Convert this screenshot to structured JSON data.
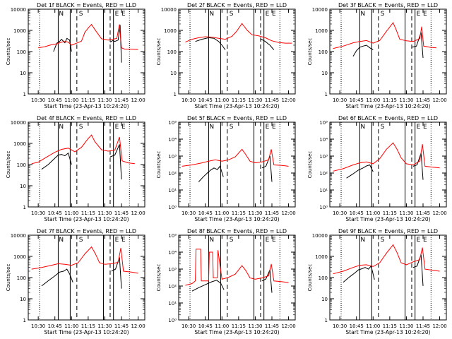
{
  "chart_data": [
    {
      "type": "line",
      "title": "Det 1f BLACK = Events, RED = LLD",
      "xlabel": "Start Time (23-Apr-13 10:24:20)",
      "ylabel": "Counts/sec",
      "scale": "log",
      "ylim": [
        1,
        10000
      ],
      "yticks": [
        "1",
        "10",
        "100",
        "1000",
        "10000"
      ],
      "xticks": [
        "10:30",
        "10:45",
        "11:00",
        "11:15",
        "11:30",
        "11:45",
        "12:00"
      ],
      "series": [
        {
          "color": "#000000",
          "x": [
            10.73,
            10.78,
            10.82,
            10.85,
            10.9,
            10.93,
            10.97,
            11.0
          ],
          "y": [
            100,
            250,
            300,
            380,
            260,
            420,
            350,
            100
          ]
        },
        {
          "color": "#000000",
          "x": [
            11.58,
            11.62,
            11.65,
            11.7,
            11.73,
            11.75
          ],
          "y": [
            280,
            330,
            300,
            350,
            1800,
            30
          ]
        },
        {
          "color": "#ff0000",
          "x": [
            10.5,
            10.6,
            10.7,
            10.78,
            10.85,
            10.9,
            10.95,
            11.0,
            11.05,
            11.15,
            11.2,
            11.25,
            11.3,
            11.35,
            11.45,
            11.55,
            11.62,
            11.68,
            11.72,
            11.75,
            11.8,
            11.9,
            12.0
          ],
          "y": [
            150,
            170,
            210,
            230,
            280,
            300,
            280,
            200,
            230,
            310,
            800,
            1300,
            1900,
            1100,
            400,
            350,
            380,
            420,
            1900,
            150,
            130,
            130,
            125
          ]
        }
      ]
    },
    {
      "type": "line",
      "title": "Det 2f BLACK = Events, RED = LLD",
      "xlabel": "Start Time (23-Apr-13 10:24:20)",
      "ylabel": "Counts/sec",
      "scale": "log",
      "ylim": [
        1,
        10000
      ],
      "yticks": [
        "1",
        "10",
        "100",
        "1000",
        "10000"
      ],
      "xticks": [
        "10:30",
        "10:45",
        "11:00",
        "11:15",
        "11:30",
        "11:45",
        "12:00"
      ],
      "series": [
        {
          "color": "#000000",
          "x": [
            10.6,
            10.7,
            10.8,
            10.88,
            10.95,
            11.0,
            11.05
          ],
          "y": [
            300,
            380,
            450,
            420,
            300,
            200,
            120
          ]
        },
        {
          "color": "#000000",
          "x": [
            11.58,
            11.65,
            11.72,
            11.78
          ],
          "y": [
            400,
            300,
            200,
            120
          ]
        },
        {
          "color": "#ff0000",
          "x": [
            10.45,
            10.55,
            10.65,
            10.75,
            10.85,
            10.95,
            11.05,
            11.15,
            11.22,
            11.3,
            11.38,
            11.45,
            11.55,
            11.65,
            11.75,
            11.85,
            11.95,
            12.05
          ],
          "y": [
            280,
            380,
            450,
            500,
            480,
            420,
            380,
            520,
            900,
            2100,
            1000,
            620,
            550,
            450,
            320,
            270,
            250,
            250
          ]
        }
      ]
    },
    {
      "type": "line",
      "title": "Det 3f BLACK = Events, RED = LLD",
      "xlabel": "Start Time (23-Apr-13 10:24:20)",
      "ylabel": "Counts/sec",
      "scale": "log",
      "ylim": [
        1,
        10000
      ],
      "yticks": [
        "1",
        "10",
        "100",
        "1000",
        "10000"
      ],
      "xticks": [
        "10:30",
        "10:45",
        "11:00",
        "11:15",
        "11:30",
        "11:45",
        "12:00"
      ],
      "series": [
        {
          "color": "#000000",
          "x": [
            10.7,
            10.75,
            10.8,
            10.85,
            10.9,
            10.95,
            11.0
          ],
          "y": [
            60,
            110,
            160,
            180,
            200,
            150,
            120
          ]
        },
        {
          "color": "#000000",
          "x": [
            11.58,
            11.65,
            11.72,
            11.75
          ],
          "y": [
            160,
            180,
            800,
            50
          ]
        },
        {
          "color": "#ff0000",
          "x": [
            10.4,
            10.55,
            10.7,
            10.8,
            10.9,
            11.0,
            11.1,
            11.2,
            11.3,
            11.35,
            11.4,
            11.5,
            11.6,
            11.7,
            11.73,
            11.76,
            11.85,
            11.95
          ],
          "y": [
            140,
            180,
            260,
            300,
            330,
            250,
            330,
            900,
            2300,
            1000,
            380,
            320,
            300,
            400,
            1500,
            180,
            160,
            150
          ]
        }
      ]
    },
    {
      "type": "line",
      "title": "Det 4f BLACK = Events, RED = LLD",
      "xlabel": "Start Time (23-Apr-13 10:24:20)",
      "ylabel": "Counts/sec",
      "scale": "log",
      "ylim": [
        1,
        10000
      ],
      "yticks": [
        "1",
        "10",
        "100",
        "1000",
        "10000"
      ],
      "xticks": [
        "10:30",
        "10:45",
        "11:00",
        "11:15",
        "11:30",
        "11:45",
        "12:00"
      ],
      "series": [
        {
          "color": "#000000",
          "x": [
            10.55,
            10.65,
            10.75,
            10.8,
            10.85,
            10.9,
            10.95,
            11.0
          ],
          "y": [
            60,
            100,
            200,
            280,
            300,
            260,
            350,
            100
          ]
        },
        {
          "color": "#000000",
          "x": [
            11.58,
            11.65,
            11.72,
            11.75
          ],
          "y": [
            230,
            280,
            900,
            20
          ]
        },
        {
          "color": "#ff0000",
          "x": [
            10.4,
            10.5,
            10.65,
            10.75,
            10.85,
            10.95,
            11.05,
            11.15,
            11.25,
            11.3,
            11.35,
            11.45,
            11.55,
            11.65,
            11.72,
            11.76,
            11.85,
            11.95
          ],
          "y": [
            110,
            130,
            250,
            380,
            520,
            600,
            400,
            650,
            1700,
            2500,
            1200,
            500,
            430,
            480,
            2000,
            150,
            120,
            110
          ]
        }
      ]
    },
    {
      "type": "line",
      "title": "Det 5f BLACK = Events, RED = LLD",
      "xlabel": "Start Time (23-Apr-13 10:24:20)",
      "ylabel": "Counts/sec",
      "scale": "log",
      "ylim": [
        1,
        100000
      ],
      "yticks": [
        "10⁰",
        "10¹",
        "10²",
        "10³",
        "10⁴",
        "10⁵"
      ],
      "xticks": [
        "10:30",
        "10:45",
        "11:00",
        "11:15",
        "11:30",
        "11:45",
        "12:00"
      ],
      "series": [
        {
          "color": "#000000",
          "x": [
            10.65,
            10.72,
            10.78,
            10.83,
            10.88,
            10.93,
            10.97,
            11.02
          ],
          "y": [
            30,
            60,
            100,
            150,
            200,
            160,
            250,
            60
          ]
        },
        {
          "color": "#000000",
          "x": [
            11.6,
            11.66,
            11.72,
            11.75
          ],
          "y": [
            200,
            250,
            1000,
            30
          ]
        },
        {
          "color": "#ff0000",
          "x": [
            10.4,
            10.55,
            10.7,
            10.8,
            10.9,
            11.0,
            11.1,
            11.2,
            11.3,
            11.36,
            11.42,
            11.5,
            11.6,
            11.7,
            11.74,
            11.78,
            11.9,
            12.0
          ],
          "y": [
            250,
            300,
            400,
            500,
            600,
            500,
            600,
            900,
            2500,
            1200,
            500,
            400,
            450,
            600,
            2500,
            300,
            280,
            250
          ]
        }
      ]
    },
    {
      "type": "line",
      "title": "Det 6f BLACK = Events, RED = LLD",
      "xlabel": "Start Time (23-Apr-13 10:24:20)",
      "ylabel": "Counts/sec",
      "scale": "log",
      "ylim": [
        1,
        100000
      ],
      "yticks": [
        "10⁰",
        "10¹",
        "10²",
        "10³",
        "10⁴",
        "10⁵"
      ],
      "xticks": [
        "10:30",
        "10:45",
        "11:00",
        "11:15",
        "11:30",
        "11:45",
        "12:00"
      ],
      "series": [
        {
          "color": "#000000",
          "x": [
            10.6,
            10.7,
            10.78,
            10.85,
            10.9,
            10.95,
            11.0
          ],
          "y": [
            50,
            90,
            150,
            200,
            260,
            300,
            120
          ]
        },
        {
          "color": "#000000",
          "x": [
            11.6,
            11.66,
            11.72,
            11.75
          ],
          "y": [
            250,
            300,
            1500,
            40
          ]
        },
        {
          "color": "#ff0000",
          "x": [
            10.4,
            10.55,
            10.7,
            10.8,
            10.9,
            11.0,
            11.1,
            11.2,
            11.3,
            11.36,
            11.42,
            11.5,
            11.6,
            11.7,
            11.74,
            11.78,
            11.9,
            12.0
          ],
          "y": [
            130,
            180,
            300,
            400,
            450,
            350,
            700,
            2500,
            6000,
            2500,
            800,
            350,
            300,
            500,
            5000,
            250,
            220,
            200
          ]
        }
      ]
    },
    {
      "type": "line",
      "title": "Det 7f BLACK = Events, RED = LLD",
      "xlabel": "Start Time (23-Apr-13 10:24:20)",
      "ylabel": "Counts/sec",
      "scale": "log",
      "ylim": [
        1,
        10000
      ],
      "yticks": [
        "1",
        "10",
        "100",
        "1000",
        "10000"
      ],
      "xticks": [
        "10:30",
        "10:45",
        "11:00",
        "11:15",
        "11:30",
        "11:45",
        "12:00"
      ],
      "series": [
        {
          "color": "#000000",
          "x": [
            10.55,
            10.65,
            10.75,
            10.82,
            10.88,
            10.93,
            10.97,
            11.02
          ],
          "y": [
            40,
            70,
            120,
            180,
            200,
            250,
            150,
            60
          ]
        },
        {
          "color": "#000000",
          "x": [
            11.6,
            11.66,
            11.72,
            11.75
          ],
          "y": [
            200,
            250,
            900,
            30
          ]
        },
        {
          "color": "#ff0000",
          "x": [
            10.4,
            10.55,
            10.7,
            10.8,
            10.9,
            11.0,
            11.1,
            11.2,
            11.3,
            11.36,
            11.42,
            11.5,
            11.6,
            11.7,
            11.74,
            11.78,
            11.9,
            12.0
          ],
          "y": [
            250,
            300,
            380,
            450,
            420,
            380,
            500,
            1300,
            2800,
            1300,
            500,
            420,
            450,
            520,
            2500,
            200,
            180,
            160
          ]
        }
      ]
    },
    {
      "type": "line",
      "title": "Det 8f BLACK = Events, RED = LLD",
      "xlabel": "Start Time (23-Apr-13 10:24:20)",
      "ylabel": "Counts/sec",
      "scale": "log",
      "ylim": [
        1,
        100000
      ],
      "yticks": [
        "10⁰",
        "10¹",
        "10²",
        "10³",
        "10⁴",
        "10⁵"
      ],
      "xticks": [
        "10:30",
        "10:45",
        "11:00",
        "11:15",
        "11:30",
        "11:45",
        "12:00"
      ],
      "series": [
        {
          "color": "#000000",
          "x": [
            10.55,
            10.65,
            10.75,
            10.85,
            10.92,
            10.98,
            11.03
          ],
          "y": [
            50,
            80,
            120,
            180,
            220,
            150,
            60
          ]
        },
        {
          "color": "#000000",
          "x": [
            11.6,
            11.66,
            11.72,
            11.75
          ],
          "y": [
            200,
            260,
            900,
            40
          ]
        },
        {
          "color": "#ff0000",
          "x": [
            10.45,
            10.55,
            10.6,
            10.61,
            10.68,
            10.69,
            10.8,
            10.81,
            10.86,
            10.87,
            10.93,
            10.94,
            11.0,
            11.1,
            11.2,
            11.3,
            11.36,
            11.42,
            11.5,
            11.6,
            11.7,
            11.74,
            11.78,
            11.9,
            12.0
          ],
          "y": [
            110,
            140,
            200,
            15000,
            15000,
            200,
            200,
            10000,
            10000,
            300,
            300,
            13000,
            250,
            330,
            500,
            1600,
            800,
            300,
            250,
            300,
            400,
            2000,
            200,
            180,
            160
          ]
        }
      ]
    },
    {
      "type": "line",
      "title": "Det 9f BLACK = Events, RED = LLD",
      "xlabel": "Start Time (23-Apr-13 10:24:20)",
      "ylabel": "Counts/sec",
      "scale": "log",
      "ylim": [
        1,
        10000
      ],
      "yticks": [
        "1",
        "10",
        "100",
        "1000",
        "10000"
      ],
      "xticks": [
        "10:30",
        "10:45",
        "11:00",
        "11:15",
        "11:30",
        "11:45",
        "12:00"
      ],
      "series": [
        {
          "color": "#000000",
          "x": [
            10.55,
            10.65,
            10.72,
            10.78,
            10.83,
            10.88,
            10.93,
            10.97,
            11.02
          ],
          "y": [
            60,
            110,
            160,
            230,
            260,
            300,
            250,
            350,
            80
          ]
        },
        {
          "color": "#000000",
          "x": [
            11.6,
            11.66,
            11.72,
            11.75
          ],
          "y": [
            300,
            350,
            1200,
            40
          ]
        },
        {
          "color": "#ff0000",
          "x": [
            10.4,
            10.55,
            10.7,
            10.8,
            10.9,
            11.0,
            11.1,
            11.2,
            11.3,
            11.36,
            11.42,
            11.5,
            11.6,
            11.7,
            11.74,
            11.78,
            11.9,
            12.0
          ],
          "y": [
            150,
            200,
            300,
            380,
            400,
            330,
            500,
            1400,
            3500,
            1500,
            500,
            400,
            550,
            700,
            2600,
            250,
            220,
            200
          ]
        }
      ]
    }
  ]
}
